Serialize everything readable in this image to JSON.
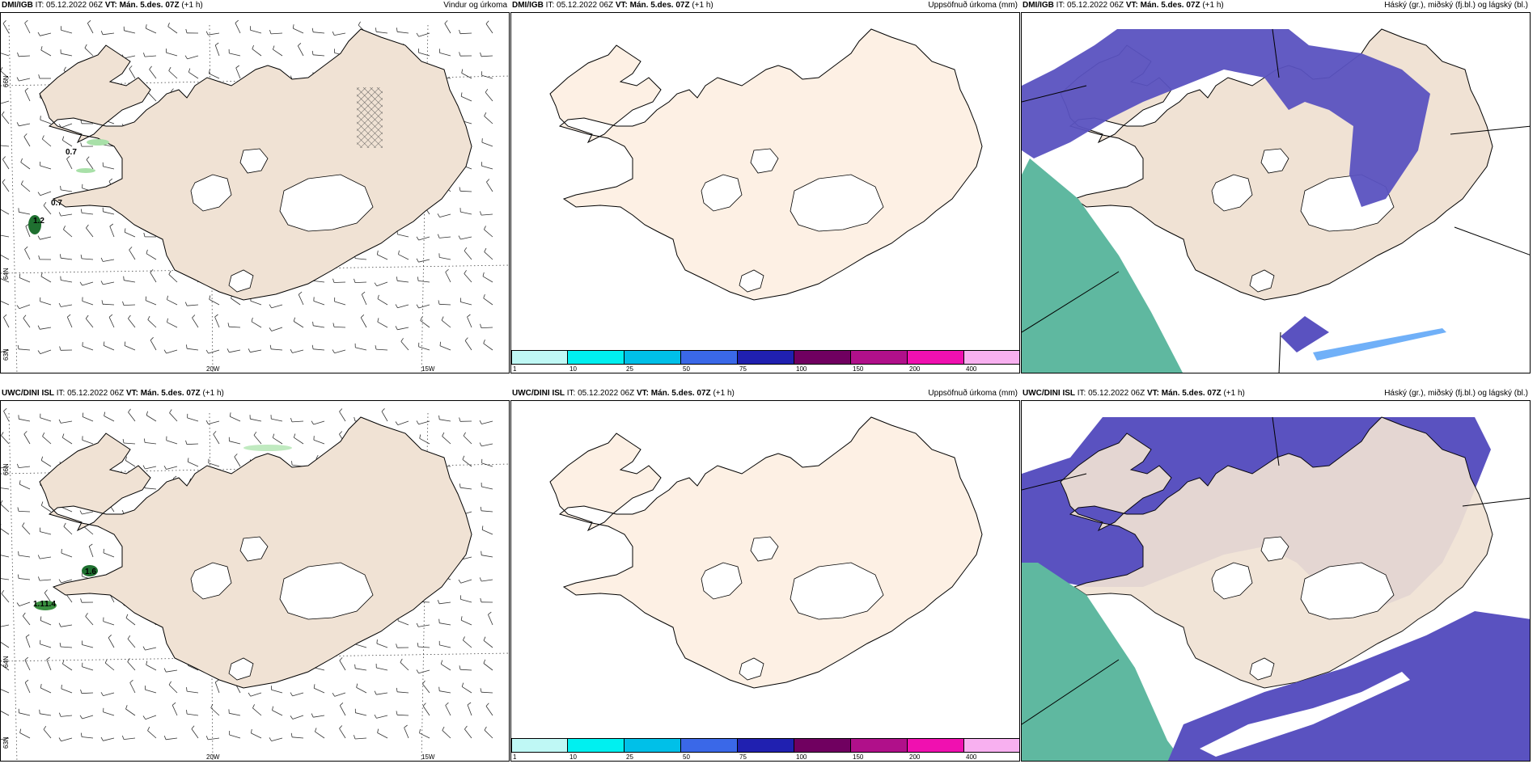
{
  "rows": [
    {
      "source": "DMI/IGB",
      "issue_label": "IT:",
      "issue_time": "05.12.2022 06Z",
      "valid_label": "VT:",
      "valid_time": "Mán. 5.des. 07Z",
      "lead": "(+1 h)",
      "panels": [
        {
          "title": "Vindur og úrkoma",
          "labels": [
            "0.7",
            "0.7",
            "1.2"
          ]
        },
        {
          "title": "Uppsöfnuð úrkoma (mm)"
        },
        {
          "title": "Háský (gr.), miðský (fj.bl.) og lágský (bl.)"
        }
      ]
    },
    {
      "source": "UWC/DINI ISL",
      "issue_label": "IT:",
      "issue_time": "05.12.2022 06Z",
      "valid_label": "VT:",
      "valid_time": "Mán. 5.des. 07Z",
      "lead": "(+1 h)",
      "panels": [
        {
          "title": "",
          "labels": [
            "1.6",
            "1.1",
            "1.4"
          ]
        },
        {
          "title": "Uppsöfnuð úrkoma (mm)"
        },
        {
          "title": "Háský (gr.), miðský (fj.bl.) og lágský (bl.)"
        }
      ]
    }
  ],
  "grid_labels": {
    "lat": [
      "66N",
      "64N",
      "63N"
    ],
    "lon": [
      "20W",
      "15W"
    ]
  },
  "colorbar": {
    "ticks": [
      "1",
      "10",
      "25",
      "50",
      "75",
      "100",
      "150",
      "200",
      "400"
    ],
    "colors": [
      "#bff8f5",
      "#00f0f0",
      "#00c0e8",
      "#3a68e8",
      "#2020b0",
      "#700060",
      "#b0108a",
      "#f010b0",
      "#f8b0f0"
    ]
  },
  "colors": {
    "land": "#f0e2d4",
    "land_light": "#fdf0e4",
    "glacier": "#ffffff",
    "cloud_mid": "#5a52c0",
    "cloud_edge": "#70b0f8",
    "cloud_high": "#5fb8a0",
    "precip": "#70c070"
  }
}
